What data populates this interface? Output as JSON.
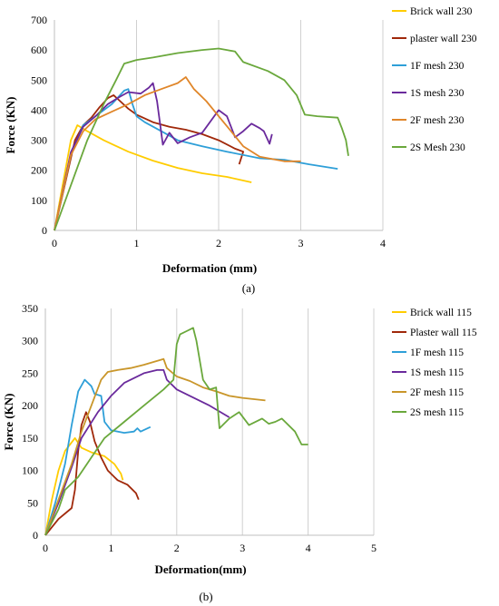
{
  "chart_data": [
    {
      "type": "line",
      "caption": "(a)",
      "xlabel": "Deformation (mm)",
      "ylabel": "Force (KN)",
      "xlim": [
        0,
        4
      ],
      "ylim": [
        0,
        700
      ],
      "xticks": [
        0,
        1,
        2,
        3,
        4
      ],
      "yticks": [
        0,
        100,
        200,
        300,
        400,
        500,
        600,
        700
      ],
      "grid": "vertical",
      "legend": "right",
      "series": [
        {
          "name": "Brick wall 230",
          "color": "#ffcc00",
          "points": [
            [
              0,
              0
            ],
            [
              0.1,
              150
            ],
            [
              0.2,
              300
            ],
            [
              0.28,
              350
            ],
            [
              0.4,
              330
            ],
            [
              0.6,
              300
            ],
            [
              0.9,
              262
            ],
            [
              1.2,
              232
            ],
            [
              1.5,
              208
            ],
            [
              1.8,
              190
            ],
            [
              2.1,
              178
            ],
            [
              2.4,
              160
            ]
          ]
        },
        {
          "name": "plaster wall 230",
          "color": "#a0280a",
          "points": [
            [
              0,
              0
            ],
            [
              0.15,
              180
            ],
            [
              0.25,
              300
            ],
            [
              0.35,
              350
            ],
            [
              0.45,
              375
            ],
            [
              0.55,
              410
            ],
            [
              0.65,
              440
            ],
            [
              0.72,
              450
            ],
            [
              0.8,
              430
            ],
            [
              0.9,
              405
            ],
            [
              1.0,
              385
            ],
            [
              1.2,
              360
            ],
            [
              1.4,
              345
            ],
            [
              1.6,
              335
            ],
            [
              1.8,
              320
            ],
            [
              2.0,
              300
            ],
            [
              2.2,
              272
            ],
            [
              2.3,
              262
            ],
            [
              2.25,
              220
            ]
          ]
        },
        {
          "name": "1F mesh 230",
          "color": "#2e9fd8",
          "points": [
            [
              0,
              0
            ],
            [
              0.2,
              250
            ],
            [
              0.35,
              350
            ],
            [
              0.5,
              380
            ],
            [
              0.7,
              420
            ],
            [
              0.85,
              465
            ],
            [
              0.9,
              470
            ],
            [
              0.95,
              420
            ],
            [
              1.0,
              380
            ],
            [
              1.1,
              360
            ],
            [
              1.3,
              330
            ],
            [
              1.5,
              300
            ],
            [
              1.8,
              280
            ],
            [
              2.1,
              262
            ],
            [
              2.5,
              240
            ],
            [
              2.8,
              235
            ],
            [
              3.1,
              220
            ],
            [
              3.45,
              205
            ]
          ]
        },
        {
          "name": "1S mesh 230",
          "color": "#6a2a9c",
          "points": [
            [
              0,
              0
            ],
            [
              0.2,
              260
            ],
            [
              0.35,
              345
            ],
            [
              0.5,
              380
            ],
            [
              0.65,
              420
            ],
            [
              0.8,
              445
            ],
            [
              0.9,
              460
            ],
            [
              1.05,
              455
            ],
            [
              1.15,
              475
            ],
            [
              1.2,
              490
            ],
            [
              1.25,
              430
            ],
            [
              1.32,
              285
            ],
            [
              1.4,
              325
            ],
            [
              1.5,
              290
            ],
            [
              1.65,
              310
            ],
            [
              1.8,
              325
            ],
            [
              2.0,
              400
            ],
            [
              2.1,
              380
            ],
            [
              2.2,
              310
            ],
            [
              2.3,
              330
            ],
            [
              2.4,
              355
            ],
            [
              2.5,
              340
            ],
            [
              2.55,
              330
            ],
            [
              2.62,
              288
            ],
            [
              2.65,
              320
            ]
          ]
        },
        {
          "name": "2F mesh 230",
          "color": "#e0862a",
          "points": [
            [
              0,
              0
            ],
            [
              0.2,
              250
            ],
            [
              0.35,
              330
            ],
            [
              0.5,
              370
            ],
            [
              0.7,
              395
            ],
            [
              0.9,
              420
            ],
            [
              1.1,
              450
            ],
            [
              1.3,
              470
            ],
            [
              1.5,
              490
            ],
            [
              1.6,
              510
            ],
            [
              1.7,
              470
            ],
            [
              1.85,
              430
            ],
            [
              2.0,
              380
            ],
            [
              2.15,
              330
            ],
            [
              2.3,
              280
            ],
            [
              2.5,
              245
            ],
            [
              2.8,
              230
            ],
            [
              3.0,
              230
            ]
          ]
        },
        {
          "name": "2S Mesh 230",
          "color": "#6aa83c",
          "points": [
            [
              0,
              0
            ],
            [
              0.2,
              150
            ],
            [
              0.4,
              300
            ],
            [
              0.6,
              420
            ],
            [
              0.75,
              500
            ],
            [
              0.85,
              555
            ],
            [
              1.0,
              567
            ],
            [
              1.2,
              575
            ],
            [
              1.5,
              590
            ],
            [
              1.8,
              600
            ],
            [
              2.0,
              605
            ],
            [
              2.1,
              600
            ],
            [
              2.2,
              595
            ],
            [
              2.3,
              560
            ],
            [
              2.6,
              530
            ],
            [
              2.8,
              500
            ],
            [
              2.95,
              450
            ],
            [
              3.05,
              385
            ],
            [
              3.2,
              380
            ],
            [
              3.45,
              375
            ],
            [
              3.5,
              340
            ],
            [
              3.55,
              300
            ],
            [
              3.58,
              248
            ]
          ]
        }
      ]
    },
    {
      "type": "line",
      "caption": "(b)",
      "xlabel": "Deformation(mm)",
      "ylabel": "Force (KN)",
      "xlim": [
        0,
        5
      ],
      "ylim": [
        0,
        350
      ],
      "xticks": [
        0,
        1,
        2,
        3,
        4,
        5
      ],
      "yticks": [
        0,
        50,
        100,
        150,
        200,
        250,
        300,
        350
      ],
      "grid": "vertical",
      "legend": "right",
      "series": [
        {
          "name": "Brick wall 115",
          "color": "#ffcc00",
          "points": [
            [
              0,
              0
            ],
            [
              0.1,
              55
            ],
            [
              0.2,
              100
            ],
            [
              0.3,
              130
            ],
            [
              0.45,
              150
            ],
            [
              0.55,
              135
            ],
            [
              0.7,
              128
            ],
            [
              0.9,
              122
            ],
            [
              1.05,
              110
            ],
            [
              1.15,
              95
            ],
            [
              1.18,
              85
            ]
          ]
        },
        {
          "name": "Plaster wall 115",
          "color": "#a0280a",
          "points": [
            [
              0,
              0
            ],
            [
              0.2,
              25
            ],
            [
              0.4,
              42
            ],
            [
              0.45,
              70
            ],
            [
              0.5,
              130
            ],
            [
              0.55,
              170
            ],
            [
              0.62,
              190
            ],
            [
              0.68,
              175
            ],
            [
              0.75,
              145
            ],
            [
              0.85,
              120
            ],
            [
              0.95,
              100
            ],
            [
              1.1,
              85
            ],
            [
              1.25,
              78
            ],
            [
              1.38,
              65
            ],
            [
              1.42,
              55
            ]
          ]
        },
        {
          "name": "1F mesh 115",
          "color": "#2e9fd8",
          "points": [
            [
              0,
              0
            ],
            [
              0.15,
              50
            ],
            [
              0.3,
              110
            ],
            [
              0.4,
              170
            ],
            [
              0.5,
              222
            ],
            [
              0.6,
              240
            ],
            [
              0.7,
              230
            ],
            [
              0.75,
              218
            ],
            [
              0.85,
              215
            ],
            [
              0.9,
              175
            ],
            [
              1.0,
              162
            ],
            [
              1.2,
              158
            ],
            [
              1.35,
              160
            ],
            [
              1.4,
              165
            ],
            [
              1.45,
              160
            ],
            [
              1.6,
              167
            ]
          ]
        },
        {
          "name": "1S mesh 115",
          "color": "#6a2a9c",
          "points": [
            [
              0,
              0
            ],
            [
              0.2,
              50
            ],
            [
              0.4,
              105
            ],
            [
              0.55,
              150
            ],
            [
              0.8,
              190
            ],
            [
              1.0,
              215
            ],
            [
              1.2,
              235
            ],
            [
              1.5,
              250
            ],
            [
              1.7,
              255
            ],
            [
              1.8,
              255
            ],
            [
              1.85,
              240
            ],
            [
              2.0,
              225
            ],
            [
              2.2,
              215
            ],
            [
              2.5,
              200
            ],
            [
              2.8,
              182
            ]
          ]
        },
        {
          "name": "2F mesh 115",
          "color": "#c9962a",
          "points": [
            [
              0,
              0
            ],
            [
              0.2,
              55
            ],
            [
              0.4,
              110
            ],
            [
              0.55,
              160
            ],
            [
              0.7,
              200
            ],
            [
              0.85,
              240
            ],
            [
              0.95,
              252
            ],
            [
              1.1,
              255
            ],
            [
              1.3,
              258
            ],
            [
              1.5,
              263
            ],
            [
              1.8,
              272
            ],
            [
              1.85,
              258
            ],
            [
              2.0,
              245
            ],
            [
              2.2,
              238
            ],
            [
              2.4,
              228
            ],
            [
              2.6,
              222
            ],
            [
              2.8,
              215
            ],
            [
              3.0,
              212
            ],
            [
              3.35,
              208
            ]
          ]
        },
        {
          "name": "2S mesh 115",
          "color": "#6aa83c",
          "points": [
            [
              0,
              0
            ],
            [
              0.2,
              40
            ],
            [
              0.3,
              70
            ],
            [
              0.4,
              80
            ],
            [
              0.5,
              90
            ],
            [
              0.7,
              120
            ],
            [
              0.9,
              150
            ],
            [
              1.2,
              175
            ],
            [
              1.5,
              200
            ],
            [
              1.8,
              225
            ],
            [
              1.95,
              240
            ],
            [
              2.0,
              295
            ],
            [
              2.05,
              310
            ],
            [
              2.15,
              315
            ],
            [
              2.25,
              320
            ],
            [
              2.3,
              300
            ],
            [
              2.4,
              240
            ],
            [
              2.5,
              225
            ],
            [
              2.6,
              228
            ],
            [
              2.65,
              165
            ],
            [
              2.8,
              180
            ],
            [
              2.95,
              190
            ],
            [
              3.1,
              170
            ],
            [
              3.3,
              180
            ],
            [
              3.4,
              172
            ],
            [
              3.5,
              175
            ],
            [
              3.6,
              180
            ],
            [
              3.8,
              160
            ],
            [
              3.9,
              140
            ],
            [
              4.0,
              140
            ]
          ]
        }
      ]
    }
  ]
}
